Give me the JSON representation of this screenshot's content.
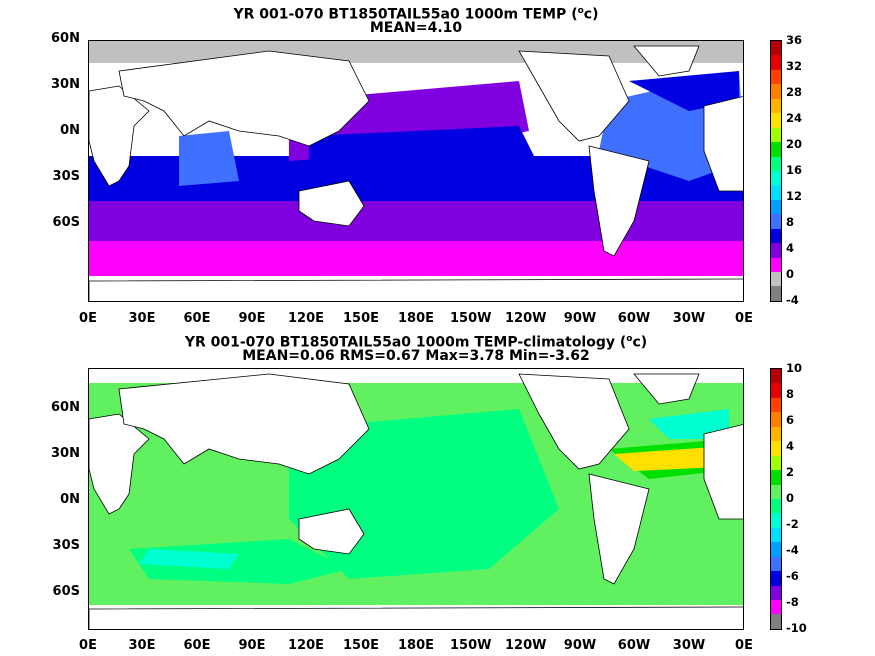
{
  "panels": [
    {
      "title_line1": "YR 001-070 BT1850TAIL55a0 1000m TEMP (",
      "title_line1_sup": "o",
      "title_line1_end": "c)",
      "title_line2": "MEAN=4.10",
      "y_ticks": [
        "60N",
        "30N",
        "0N",
        "30S",
        "60S"
      ],
      "x_ticks": [
        "0E",
        "30E",
        "60E",
        "90E",
        "120E",
        "150E",
        "180E",
        "150W",
        "120W",
        "90W",
        "60W",
        "30W",
        "0E"
      ],
      "colorbar_labels": [
        "36",
        "32",
        "28",
        "24",
        "20",
        "16",
        "12",
        "8",
        "4",
        "0",
        "-4"
      ],
      "colorbar_colors": [
        "#b40000",
        "#e60000",
        "#ff4000",
        "#ff8000",
        "#ffb400",
        "#ffe000",
        "#a0ff00",
        "#00e000",
        "#00ff80",
        "#00ffd0",
        "#00e0ff",
        "#00a0ff",
        "#4070ff",
        "#0000e0",
        "#8000e0",
        "#ff00ff",
        "#c0c0c0",
        "#808080"
      ]
    },
    {
      "title_line1": "YR 001-070 BT1850TAIL55a0 1000m TEMP-climatology (",
      "title_line1_sup": "o",
      "title_line1_end": "c)",
      "title_line2": "MEAN=0.06   RMS=0.67   Max=3.78   Min=-3.62",
      "y_ticks": [
        "60N",
        "30N",
        "0N",
        "30S",
        "60S"
      ],
      "x_ticks": [
        "0E",
        "30E",
        "60E",
        "90E",
        "120E",
        "150E",
        "180E",
        "150W",
        "120W",
        "90W",
        "60W",
        "30W",
        "0E"
      ],
      "colorbar_labels": [
        "10",
        "8",
        "6",
        "4",
        "2",
        "0",
        "-2",
        "-4",
        "-6",
        "-8",
        "-10"
      ],
      "colorbar_colors": [
        "#b40000",
        "#e60000",
        "#ff4000",
        "#ff8000",
        "#ffb400",
        "#ffe000",
        "#a0ff00",
        "#00e000",
        "#60f060",
        "#00ff80",
        "#00ffd0",
        "#00e0ff",
        "#00a0ff",
        "#4070ff",
        "#0000e0",
        "#8000e0",
        "#ff00ff",
        "#808080"
      ]
    }
  ]
}
